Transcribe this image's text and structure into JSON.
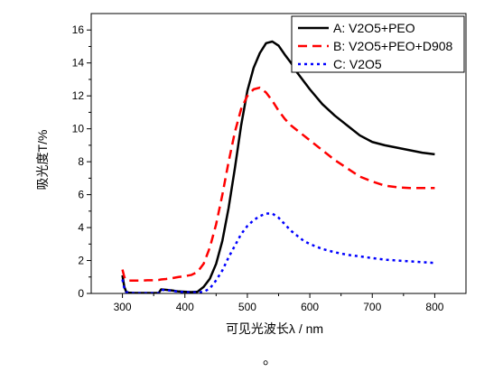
{
  "chart_data": {
    "type": "line",
    "xlabel": "可见光波长λ / nm",
    "ylabel": "吸光度T/%",
    "xlim": [
      250,
      850
    ],
    "ylim": [
      0,
      17
    ],
    "xticks": [
      300,
      400,
      500,
      600,
      700,
      800
    ],
    "yticks": [
      0,
      2,
      4,
      6,
      8,
      10,
      12,
      14,
      16
    ],
    "grid": false,
    "legend": "top-right",
    "x": [
      300,
      303,
      306,
      310,
      320,
      330,
      340,
      350,
      358,
      362,
      370,
      380,
      390,
      400,
      410,
      420,
      430,
      440,
      450,
      460,
      470,
      480,
      490,
      500,
      510,
      520,
      530,
      540,
      550,
      560,
      570,
      580,
      590,
      600,
      620,
      640,
      660,
      680,
      700,
      720,
      740,
      760,
      780,
      800
    ],
    "series": [
      {
        "name": "A: V2O5+PEO",
        "color": "#000000",
        "line_style": "solid",
        "values": [
          1.1,
          0.4,
          0.1,
          0.05,
          0.03,
          0.03,
          0.03,
          0.03,
          0.03,
          0.25,
          0.22,
          0.18,
          0.12,
          0.1,
          0.08,
          0.1,
          0.4,
          0.9,
          1.8,
          3.2,
          5.2,
          7.6,
          10.2,
          12.3,
          13.7,
          14.6,
          15.2,
          15.3,
          15.05,
          14.5,
          14.0,
          13.4,
          12.9,
          12.4,
          11.5,
          10.8,
          10.2,
          9.6,
          9.2,
          9.0,
          8.85,
          8.7,
          8.55,
          8.45
        ]
      },
      {
        "name": "B: V2O5+PEO+D908",
        "color": "#ff0000",
        "line_style": "dashed",
        "values": [
          1.45,
          1.0,
          0.82,
          0.78,
          0.78,
          0.78,
          0.8,
          0.8,
          0.82,
          0.85,
          0.88,
          0.93,
          1.0,
          1.05,
          1.12,
          1.3,
          1.8,
          2.8,
          4.2,
          6.0,
          8.0,
          9.8,
          11.2,
          12.0,
          12.4,
          12.5,
          12.2,
          11.7,
          11.1,
          10.6,
          10.2,
          9.9,
          9.6,
          9.3,
          8.7,
          8.1,
          7.6,
          7.1,
          6.8,
          6.55,
          6.45,
          6.4,
          6.4,
          6.4
        ]
      },
      {
        "name": "C: V2O5",
        "color": "#0000ff",
        "line_style": "dotted",
        "values": [
          0.85,
          0.3,
          0.08,
          0.04,
          0.02,
          0.02,
          0.02,
          0.02,
          0.02,
          0.22,
          0.2,
          0.16,
          0.1,
          0.08,
          0.06,
          0.06,
          0.1,
          0.3,
          0.8,
          1.4,
          2.2,
          2.9,
          3.6,
          4.1,
          4.45,
          4.7,
          4.85,
          4.85,
          4.6,
          4.2,
          3.8,
          3.5,
          3.2,
          3.0,
          2.7,
          2.5,
          2.35,
          2.25,
          2.15,
          2.05,
          2.0,
          1.95,
          1.9,
          1.85
        ]
      }
    ]
  },
  "figure_note": "。"
}
